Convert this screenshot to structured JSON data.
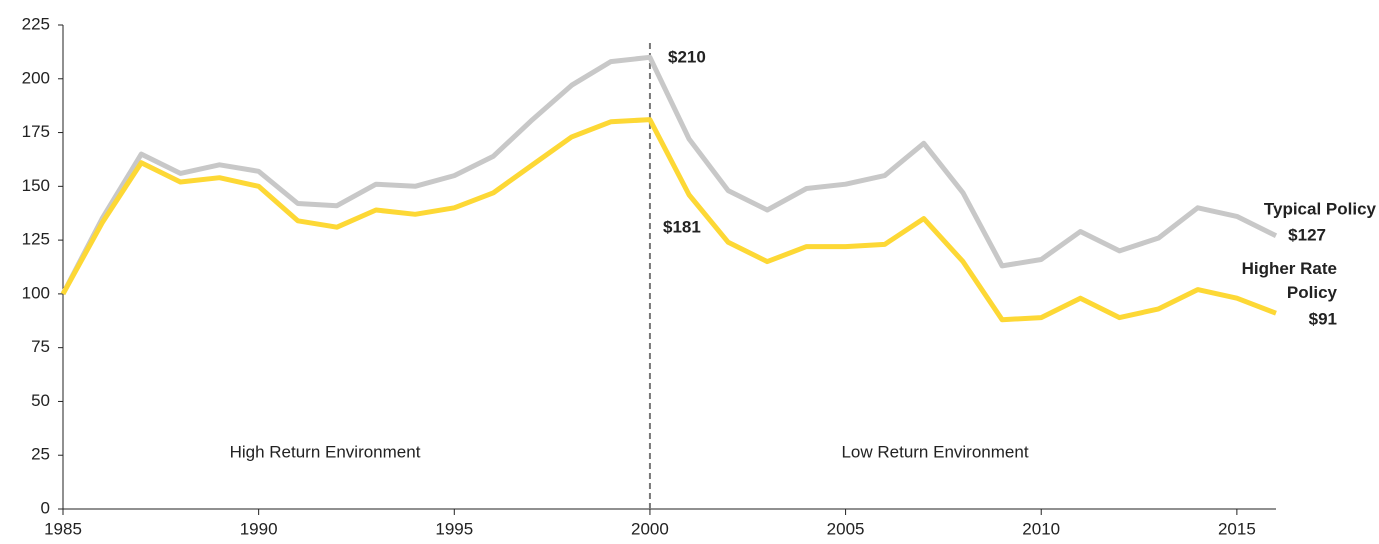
{
  "chart_data": {
    "type": "line",
    "x": [
      1985,
      1986,
      1987,
      1988,
      1989,
      1990,
      1991,
      1992,
      1993,
      1994,
      1995,
      1996,
      1997,
      1998,
      1999,
      2000,
      2001,
      2002,
      2003,
      2004,
      2005,
      2006,
      2007,
      2008,
      2009,
      2010,
      2011,
      2012,
      2013,
      2014,
      2015,
      2016
    ],
    "series": [
      {
        "name": "Typical Policy",
        "color": "#c8c8c8",
        "label_color": "#a6a6a6",
        "values": [
          100,
          135,
          165,
          156,
          160,
          157,
          142,
          141,
          151,
          150,
          155,
          164,
          181,
          197,
          208,
          210,
          172,
          148,
          139,
          149,
          151,
          155,
          170,
          147,
          113,
          116,
          129,
          120,
          126,
          140,
          136,
          127
        ]
      },
      {
        "name": "Higher Rate Policy",
        "color": "#fdd835",
        "label_color": "#d4b000",
        "values": [
          100,
          133,
          161,
          152,
          154,
          150,
          134,
          131,
          139,
          137,
          140,
          147,
          160,
          173,
          180,
          181,
          146,
          124,
          115,
          122,
          122,
          123,
          135,
          115,
          88,
          89,
          98,
          89,
          93,
          102,
          98,
          91
        ]
      }
    ],
    "annotations": [
      {
        "text": "$210"
      },
      {
        "text": "$181"
      },
      {
        "text": "$127"
      },
      {
        "text": "$91"
      },
      {
        "text": "High Return Environment"
      },
      {
        "text": "Low Return Environment"
      }
    ],
    "divider_x": 2000,
    "xlim": [
      1985,
      2016
    ],
    "xticks": [
      1985,
      1990,
      1995,
      2000,
      2005,
      2010,
      2015
    ],
    "ylim": [
      0,
      225
    ],
    "yticks": [
      0,
      25,
      50,
      75,
      100,
      125,
      150,
      175,
      200,
      225
    ]
  }
}
